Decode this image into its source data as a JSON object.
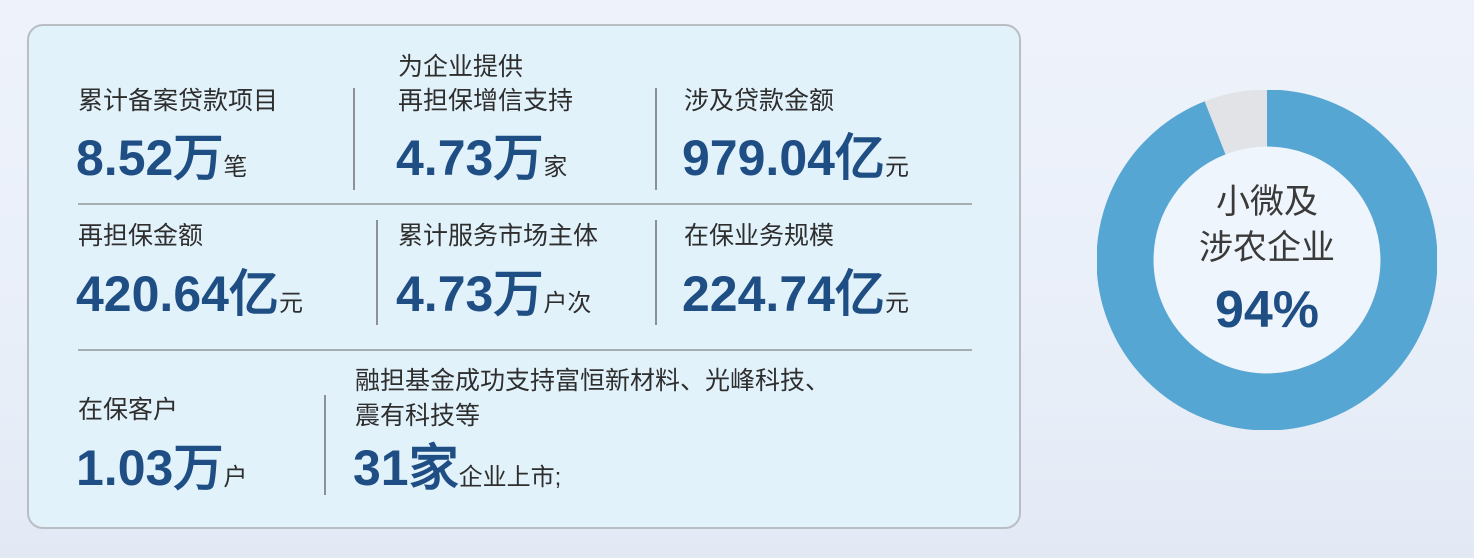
{
  "stats": [
    {
      "label": "累计备案贷款项目",
      "value": "8.52万",
      "unit": "笔"
    },
    {
      "label_line1": "为企业提供",
      "label_line2": "再担保增信支持",
      "value": "4.73万",
      "unit": "家"
    },
    {
      "label": "涉及贷款金额",
      "value": "979.04亿",
      "unit": "元"
    },
    {
      "label": "再担保金额",
      "value": "420.64亿",
      "unit": "元"
    },
    {
      "label": "累计服务市场主体",
      "value": "4.73万",
      "unit": "户次"
    },
    {
      "label": "在保业务规模",
      "value": "224.74亿",
      "unit": "元"
    },
    {
      "label": "在保客户",
      "value": "1.03万",
      "unit": "户"
    },
    {
      "label_line1": "融担基金成功支持富恒新材料、光峰科技、",
      "label_line2": "震有科技等",
      "value": "31家",
      "unit": "企业上市;"
    }
  ],
  "donut": {
    "label_line1": "小微及",
    "label_line2": "涉农企业",
    "percent_text": "94%",
    "percent": 94,
    "fill_color": "#55a6d3",
    "rest_color": "#e1e3e6"
  }
}
